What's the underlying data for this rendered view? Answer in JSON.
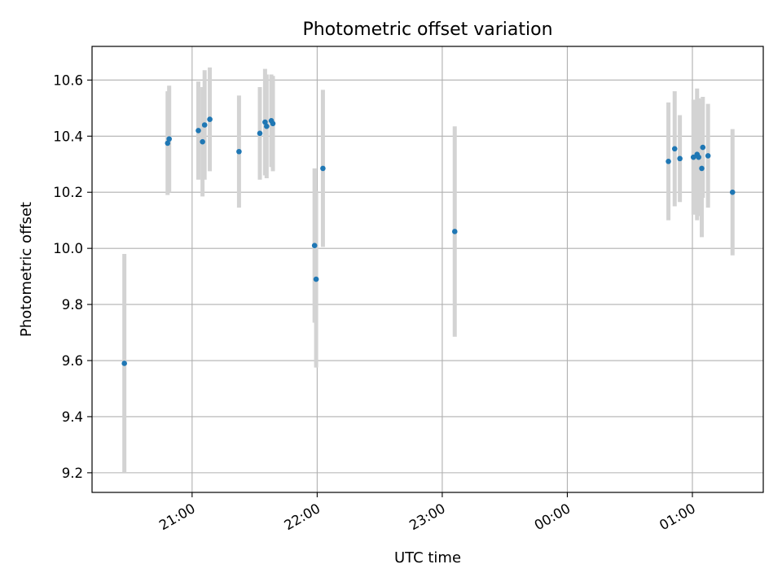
{
  "chart_data": {
    "type": "scatter",
    "title": "Photometric offset variation",
    "xlabel": "UTC time",
    "ylabel": "Photometric offset",
    "x_range": [
      "2023-01-01T20:12",
      "2023-01-02T01:34"
    ],
    "ylim": [
      9.13,
      10.72
    ],
    "grid": true,
    "x_ticks": [
      {
        "label": "21:00",
        "time": "2023-01-01T21:00"
      },
      {
        "label": "22:00",
        "time": "2023-01-01T22:00"
      },
      {
        "label": "23:00",
        "time": "2023-01-01T23:00"
      },
      {
        "label": "00:00",
        "time": "2023-01-02T00:00"
      },
      {
        "label": "01:00",
        "time": "2023-01-02T01:00"
      }
    ],
    "y_ticks": [
      {
        "label": "9.2",
        "value": 9.2
      },
      {
        "label": "9.4",
        "value": 9.4
      },
      {
        "label": "9.6",
        "value": 9.6
      },
      {
        "label": "9.8",
        "value": 9.8
      },
      {
        "label": "10.0",
        "value": 10.0
      },
      {
        "label": "10.2",
        "value": 10.2
      },
      {
        "label": "10.4",
        "value": 10.4
      },
      {
        "label": "10.6",
        "value": 10.6
      }
    ],
    "colors": {
      "point": "#1f77b4",
      "errorbar": "#d3d3d3",
      "grid": "#b0b0b0"
    },
    "points": [
      {
        "time": "2023-01-01T20:27:30",
        "y": 9.59,
        "err": 0.39
      },
      {
        "time": "2023-01-01T20:48:15",
        "y": 10.375,
        "err": 0.185
      },
      {
        "time": "2023-01-01T20:49:00",
        "y": 10.39,
        "err": 0.19
      },
      {
        "time": "2023-01-01T21:03:00",
        "y": 10.42,
        "err": 0.175
      },
      {
        "time": "2023-01-01T21:05:00",
        "y": 10.38,
        "err": 0.195
      },
      {
        "time": "2023-01-01T21:06:00",
        "y": 10.44,
        "err": 0.195
      },
      {
        "time": "2023-01-01T21:08:30",
        "y": 10.46,
        "err": 0.185
      },
      {
        "time": "2023-01-01T21:22:30",
        "y": 10.345,
        "err": 0.2
      },
      {
        "time": "2023-01-01T21:32:30",
        "y": 10.41,
        "err": 0.165
      },
      {
        "time": "2023-01-01T21:35:00",
        "y": 10.45,
        "err": 0.19
      },
      {
        "time": "2023-01-01T21:35:45",
        "y": 10.435,
        "err": 0.185
      },
      {
        "time": "2023-01-01T21:38:00",
        "y": 10.455,
        "err": 0.165
      },
      {
        "time": "2023-01-01T21:38:45",
        "y": 10.445,
        "err": 0.17
      },
      {
        "time": "2023-01-01T21:58:45",
        "y": 10.01,
        "err": 0.275
      },
      {
        "time": "2023-01-01T21:59:30",
        "y": 9.89,
        "err": 0.315
      },
      {
        "time": "2023-01-01T22:02:45",
        "y": 10.285,
        "err": 0.28
      },
      {
        "time": "2023-01-01T23:06:00",
        "y": 10.06,
        "err": 0.375
      },
      {
        "time": "2023-01-02T00:48:30",
        "y": 10.31,
        "err": 0.21
      },
      {
        "time": "2023-01-02T00:51:30",
        "y": 10.355,
        "err": 0.205
      },
      {
        "time": "2023-01-02T00:54:00",
        "y": 10.32,
        "err": 0.155
      },
      {
        "time": "2023-01-02T01:00:30",
        "y": 10.325,
        "err": 0.205
      },
      {
        "time": "2023-01-02T01:02:15",
        "y": 10.335,
        "err": 0.235
      },
      {
        "time": "2023-01-02T01:03:00",
        "y": 10.325,
        "err": 0.21
      },
      {
        "time": "2023-01-02T01:04:30",
        "y": 10.285,
        "err": 0.245
      },
      {
        "time": "2023-01-02T01:05:00",
        "y": 10.36,
        "err": 0.18
      },
      {
        "time": "2023-01-02T01:07:30",
        "y": 10.33,
        "err": 0.185
      },
      {
        "time": "2023-01-02T01:19:15",
        "y": 10.2,
        "err": 0.225
      }
    ]
  }
}
